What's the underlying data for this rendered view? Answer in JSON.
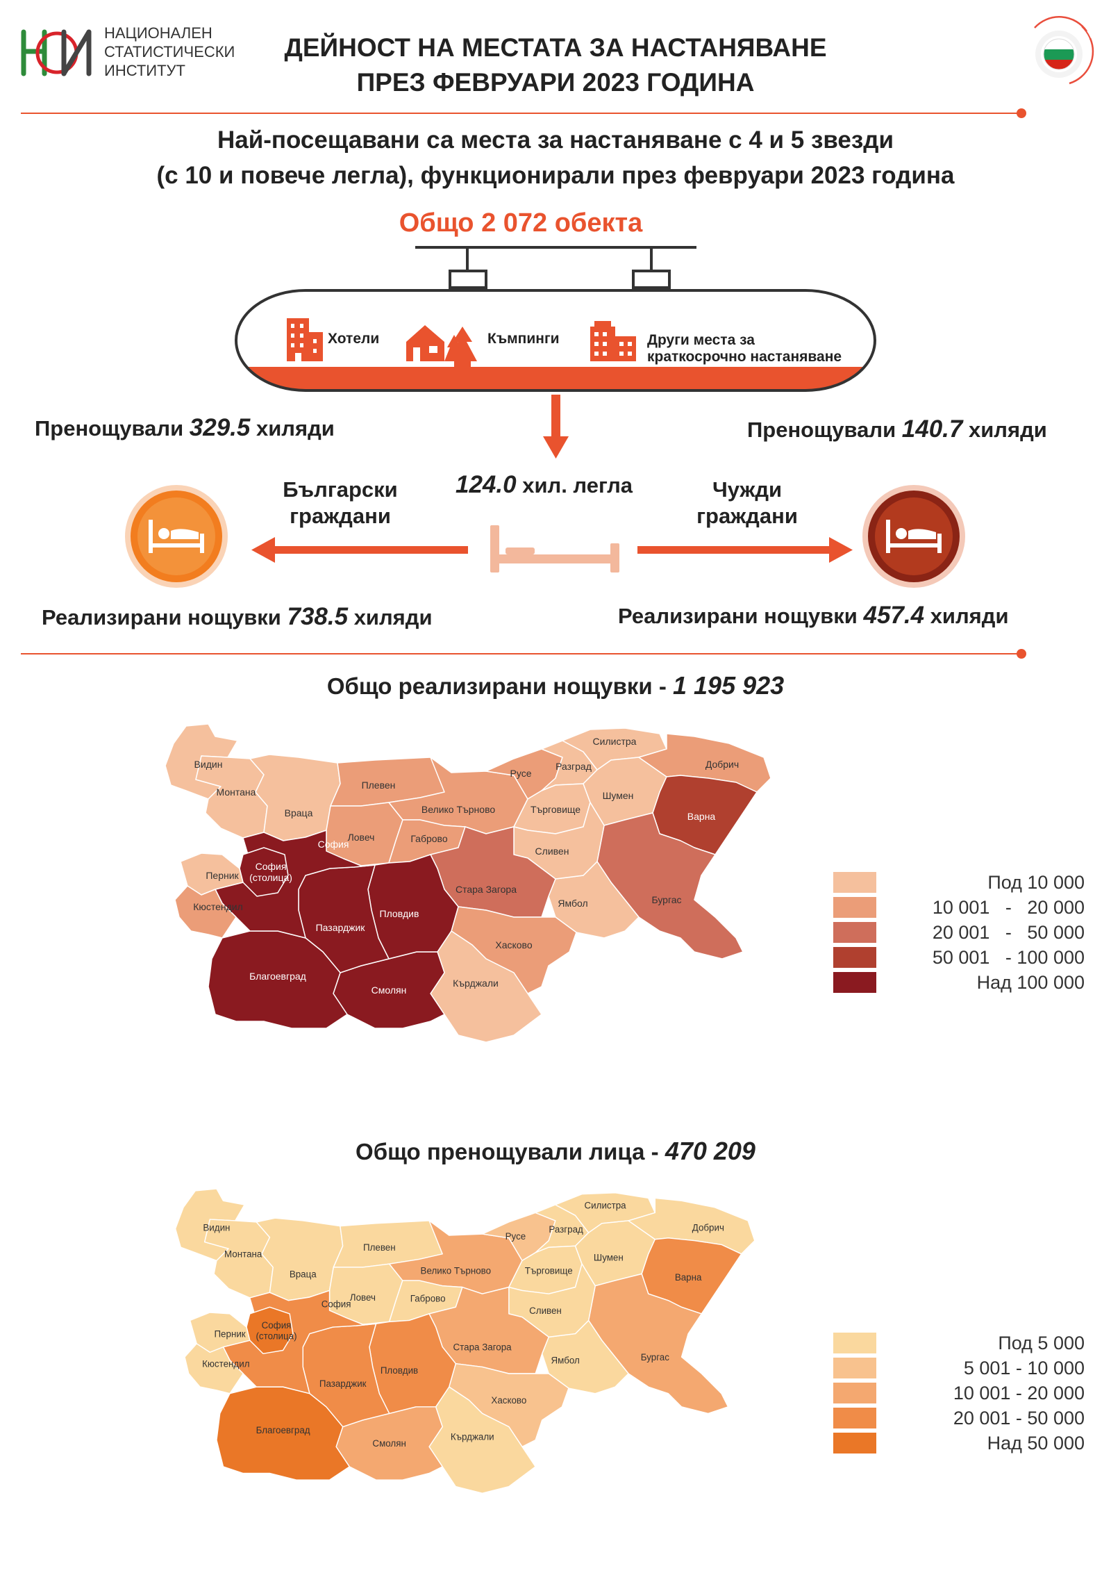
{
  "header": {
    "org_name_lines": [
      "НАЦИОНАЛЕН",
      "СТАТИСТИЧЕСКИ",
      "ИНСТИТУТ"
    ],
    "title_lines": [
      "ДЕЙНОСТ НА МЕСТАТА ЗА НАСТАНЯВАНЕ",
      "ПРЕЗ ФЕВРУАРИ 2023 ГОДИНА"
    ]
  },
  "subtitle_lines": [
    "Най-посещавани са места за настаняване с 4 и 5 звезди",
    "(с 10 и повече легла), функционирали през февруари 2023 година"
  ],
  "total": {
    "prefix": "Общо ",
    "value": "2 072",
    "suffix": " обекта"
  },
  "types": [
    "Хотели",
    "Къмпинги",
    "Други места за",
    "краткосрочно настаняване"
  ],
  "beds": {
    "value": "124.0",
    "unit": " хил. легла"
  },
  "bulgarian": {
    "group_lines": [
      "Български",
      "граждани"
    ],
    "guests_label": "Пренощували ",
    "guests_value": "329.5",
    "guests_unit": " хиляди",
    "nights_label": "Реализирани нощувки ",
    "nights_value": "738.5",
    "nights_unit": " хиляди"
  },
  "foreign": {
    "group_lines": [
      "Чужди",
      "граждани"
    ],
    "guests_label": "Пренощували ",
    "guests_value": "140.7",
    "guests_unit": " хиляди",
    "nights_label": "Реализирани нощувки ",
    "nights_value": "457.4",
    "nights_unit": " хиляди"
  },
  "map_nights": {
    "title_prefix": "Общо реализирани нощувки - ",
    "title_value": "1 195 923",
    "legend": [
      {
        "label": "Под 10 000",
        "color": "#f5c09d"
      },
      {
        "label": "10 001   -   20 000",
        "color": "#eb9d78"
      },
      {
        "label": "20 001   -   50 000",
        "color": "#cf6e5b"
      },
      {
        "label": "50 001   - 100 000",
        "color": "#b0402f"
      },
      {
        "label": "Над 100 000",
        "color": "#8a1a20"
      }
    ]
  },
  "map_guests": {
    "title_prefix": "Общо пренощували лица - ",
    "title_value": "470 209",
    "legend": [
      {
        "label": "Под 5 000",
        "color": "#fad89e"
      },
      {
        "label": "5 001 - 10 000",
        "color": "#f8c28e"
      },
      {
        "label": "10 001 - 20 000",
        "color": "#f4a870"
      },
      {
        "label": "20 001 - 50 000",
        "color": "#f08c48"
      },
      {
        "label": "Над 50 000",
        "color": "#ea7727"
      }
    ]
  },
  "regions": {
    "vidin": {
      "name": "Видин",
      "nights_class": 0,
      "guests_class": 0
    },
    "montana": {
      "name": "Монтана",
      "nights_class": 0,
      "guests_class": 0
    },
    "vratsa": {
      "name": "Враца",
      "nights_class": 0,
      "guests_class": 0
    },
    "pleven": {
      "name": "Плевен",
      "nights_class": 1,
      "guests_class": 0
    },
    "lovech": {
      "name": "Ловеч",
      "nights_class": 1,
      "guests_class": 0
    },
    "veliko_tarnovo": {
      "name": "Велико Търново",
      "nights_class": 1,
      "guests_class": 2
    },
    "gabrovo": {
      "name": "Габрово",
      "nights_class": 1,
      "guests_class": 0
    },
    "ruse": {
      "name": "Русе",
      "nights_class": 1,
      "guests_class": 1
    },
    "razgrad": {
      "name": "Разград",
      "nights_class": 0,
      "guests_class": 0
    },
    "silistra": {
      "name": "Силистра",
      "nights_class": 0,
      "guests_class": 0
    },
    "targovishte": {
      "name": "Търговище",
      "nights_class": 0,
      "guests_class": 0
    },
    "shumen": {
      "name": "Шумен",
      "nights_class": 0,
      "guests_class": 0
    },
    "dobrich": {
      "name": "Добрич",
      "nights_class": 1,
      "guests_class": 0
    },
    "varna": {
      "name": "Варна",
      "nights_class": 3,
      "guests_class": 3
    },
    "burgas": {
      "name": "Бургас",
      "nights_class": 2,
      "guests_class": 2
    },
    "yambol": {
      "name": "Ямбол",
      "nights_class": 0,
      "guests_class": 0
    },
    "sliven": {
      "name": "Сливен",
      "nights_class": 0,
      "guests_class": 0
    },
    "stara_zagora": {
      "name": "Стара Загора",
      "nights_class": 2,
      "guests_class": 2
    },
    "haskovo": {
      "name": "Хасково",
      "nights_class": 1,
      "guests_class": 1
    },
    "kardzhali": {
      "name": "Кърджали",
      "nights_class": 0,
      "guests_class": 0
    },
    "smolyan": {
      "name": "Смолян",
      "nights_class": 4,
      "guests_class": 2
    },
    "plovdiv": {
      "name": "Пловдив",
      "nights_class": 4,
      "guests_class": 3
    },
    "pazardzhik": {
      "name": "Пазарджик",
      "nights_class": 4,
      "guests_class": 3
    },
    "blagoevgrad": {
      "name": "Благоевград",
      "nights_class": 4,
      "guests_class": 4
    },
    "sofia": {
      "name": "София",
      "nights_class": 4,
      "guests_class": 3
    },
    "sofia_city": {
      "name": "София\n(столица)",
      "nights_class": 4,
      "guests_class": 4
    },
    "pernik": {
      "name": "Перник",
      "nights_class": 0,
      "guests_class": 0
    },
    "kyustendil": {
      "name": "Кюстендил",
      "nights_class": 1,
      "guests_class": 0
    }
  }
}
